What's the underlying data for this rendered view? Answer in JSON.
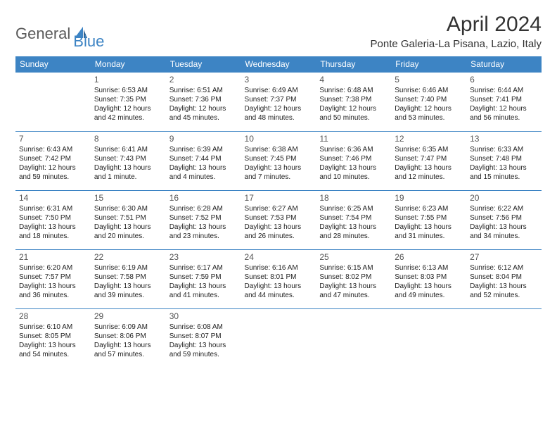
{
  "logo": {
    "part1": "General",
    "part2": "Blue"
  },
  "title": "April 2024",
  "location": "Ponte Galeria-La Pisana, Lazio, Italy",
  "colors": {
    "header_bg": "#3d84c4",
    "header_fg": "#ffffff",
    "border": "#3d84c4",
    "logo_gray": "#5a5a5a",
    "logo_blue": "#3d84c4",
    "text": "#222222",
    "daynum": "#555555",
    "bg": "#ffffff"
  },
  "typography": {
    "title_fontsize": 30,
    "location_fontsize": 15,
    "header_fontsize": 12,
    "daynum_fontsize": 12,
    "cell_fontsize": 10,
    "logo_fontsize": 22
  },
  "weekdays": [
    "Sunday",
    "Monday",
    "Tuesday",
    "Wednesday",
    "Thursday",
    "Friday",
    "Saturday"
  ],
  "weeks": [
    [
      null,
      {
        "d": "1",
        "sr": "6:53 AM",
        "ss": "7:35 PM",
        "dl": "12 hours and 42 minutes."
      },
      {
        "d": "2",
        "sr": "6:51 AM",
        "ss": "7:36 PM",
        "dl": "12 hours and 45 minutes."
      },
      {
        "d": "3",
        "sr": "6:49 AM",
        "ss": "7:37 PM",
        "dl": "12 hours and 48 minutes."
      },
      {
        "d": "4",
        "sr": "6:48 AM",
        "ss": "7:38 PM",
        "dl": "12 hours and 50 minutes."
      },
      {
        "d": "5",
        "sr": "6:46 AM",
        "ss": "7:40 PM",
        "dl": "12 hours and 53 minutes."
      },
      {
        "d": "6",
        "sr": "6:44 AM",
        "ss": "7:41 PM",
        "dl": "12 hours and 56 minutes."
      }
    ],
    [
      {
        "d": "7",
        "sr": "6:43 AM",
        "ss": "7:42 PM",
        "dl": "12 hours and 59 minutes."
      },
      {
        "d": "8",
        "sr": "6:41 AM",
        "ss": "7:43 PM",
        "dl": "13 hours and 1 minute."
      },
      {
        "d": "9",
        "sr": "6:39 AM",
        "ss": "7:44 PM",
        "dl": "13 hours and 4 minutes."
      },
      {
        "d": "10",
        "sr": "6:38 AM",
        "ss": "7:45 PM",
        "dl": "13 hours and 7 minutes."
      },
      {
        "d": "11",
        "sr": "6:36 AM",
        "ss": "7:46 PM",
        "dl": "13 hours and 10 minutes."
      },
      {
        "d": "12",
        "sr": "6:35 AM",
        "ss": "7:47 PM",
        "dl": "13 hours and 12 minutes."
      },
      {
        "d": "13",
        "sr": "6:33 AM",
        "ss": "7:48 PM",
        "dl": "13 hours and 15 minutes."
      }
    ],
    [
      {
        "d": "14",
        "sr": "6:31 AM",
        "ss": "7:50 PM",
        "dl": "13 hours and 18 minutes."
      },
      {
        "d": "15",
        "sr": "6:30 AM",
        "ss": "7:51 PM",
        "dl": "13 hours and 20 minutes."
      },
      {
        "d": "16",
        "sr": "6:28 AM",
        "ss": "7:52 PM",
        "dl": "13 hours and 23 minutes."
      },
      {
        "d": "17",
        "sr": "6:27 AM",
        "ss": "7:53 PM",
        "dl": "13 hours and 26 minutes."
      },
      {
        "d": "18",
        "sr": "6:25 AM",
        "ss": "7:54 PM",
        "dl": "13 hours and 28 minutes."
      },
      {
        "d": "19",
        "sr": "6:23 AM",
        "ss": "7:55 PM",
        "dl": "13 hours and 31 minutes."
      },
      {
        "d": "20",
        "sr": "6:22 AM",
        "ss": "7:56 PM",
        "dl": "13 hours and 34 minutes."
      }
    ],
    [
      {
        "d": "21",
        "sr": "6:20 AM",
        "ss": "7:57 PM",
        "dl": "13 hours and 36 minutes."
      },
      {
        "d": "22",
        "sr": "6:19 AM",
        "ss": "7:58 PM",
        "dl": "13 hours and 39 minutes."
      },
      {
        "d": "23",
        "sr": "6:17 AM",
        "ss": "7:59 PM",
        "dl": "13 hours and 41 minutes."
      },
      {
        "d": "24",
        "sr": "6:16 AM",
        "ss": "8:01 PM",
        "dl": "13 hours and 44 minutes."
      },
      {
        "d": "25",
        "sr": "6:15 AM",
        "ss": "8:02 PM",
        "dl": "13 hours and 47 minutes."
      },
      {
        "d": "26",
        "sr": "6:13 AM",
        "ss": "8:03 PM",
        "dl": "13 hours and 49 minutes."
      },
      {
        "d": "27",
        "sr": "6:12 AM",
        "ss": "8:04 PM",
        "dl": "13 hours and 52 minutes."
      }
    ],
    [
      {
        "d": "28",
        "sr": "6:10 AM",
        "ss": "8:05 PM",
        "dl": "13 hours and 54 minutes."
      },
      {
        "d": "29",
        "sr": "6:09 AM",
        "ss": "8:06 PM",
        "dl": "13 hours and 57 minutes."
      },
      {
        "d": "30",
        "sr": "6:08 AM",
        "ss": "8:07 PM",
        "dl": "13 hours and 59 minutes."
      },
      null,
      null,
      null,
      null
    ]
  ],
  "labels": {
    "sunrise": "Sunrise:",
    "sunset": "Sunset:",
    "daylight": "Daylight:"
  }
}
